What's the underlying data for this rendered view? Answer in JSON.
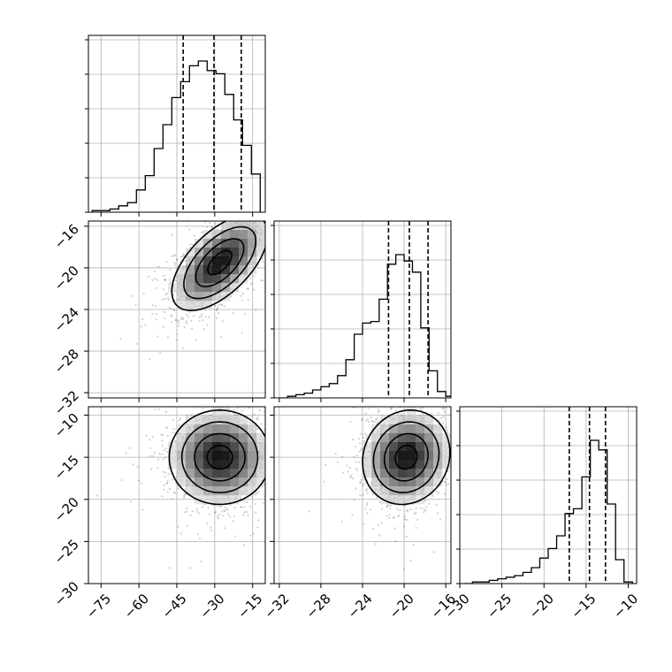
{
  "chart_data": {
    "type": "corner",
    "title": "",
    "parameters": [
      {
        "name": "",
        "range": [
          -80,
          -10
        ],
        "ticks": [
          -75,
          -60,
          -45,
          -30,
          -15
        ],
        "tick_labels": [
          "−75",
          "−60",
          "−45",
          "−30",
          "−15"
        ],
        "quantiles": [
          -42.5,
          -30.3,
          -19.5
        ]
      },
      {
        "name": "",
        "range": [
          -32.5,
          -15.5
        ],
        "ticks": [
          -32,
          -28,
          -24,
          -20,
          -16
        ],
        "tick_labels": [
          "−32",
          "−28",
          "−24",
          "−20",
          "−16"
        ],
        "quantiles": [
          -21.5,
          -19.5,
          -17.7
        ]
      },
      {
        "name": "",
        "range": [
          -30,
          -9
        ],
        "ticks": [
          -30,
          -25,
          -20,
          -15,
          -10
        ],
        "tick_labels": [
          "−30",
          "−25",
          "−20",
          "−15",
          "−10"
        ],
        "quantiles": [
          -17.0,
          -14.6,
          -12.7
        ]
      }
    ],
    "histograms": [
      {
        "bin_edges": [
          -78.5,
          -75,
          -71.5,
          -68,
          -64.5,
          -61,
          -57.5,
          -54,
          -50.5,
          -47,
          -43.5,
          -40,
          -36.5,
          -33,
          -29.5,
          -26,
          -22.5,
          -19,
          -15.5,
          -12
        ],
        "counts": [
          0.01,
          0.01,
          0.02,
          0.04,
          0.06,
          0.14,
          0.23,
          0.4,
          0.55,
          0.72,
          0.82,
          0.92,
          0.95,
          0.89,
          0.87,
          0.74,
          0.58,
          0.42,
          0.24
        ]
      },
      {
        "bin_edges": [
          -32,
          -31.2,
          -30.4,
          -29.6,
          -28.8,
          -28,
          -27.2,
          -26.4,
          -25.6,
          -24.8,
          -24,
          -23.2,
          -22.4,
          -21.6,
          -20.8,
          -20,
          -19.2,
          -18.4,
          -17.6,
          -16.8,
          -16,
          -15.2
        ],
        "counts": [
          0.0,
          0.01,
          0.02,
          0.03,
          0.05,
          0.07,
          0.09,
          0.14,
          0.24,
          0.4,
          0.47,
          0.48,
          0.62,
          0.84,
          0.9,
          0.86,
          0.79,
          0.44,
          0.17,
          0.04,
          0.01
        ]
      },
      {
        "bin_edges": [
          -29.5,
          -28.5,
          -27.5,
          -26.5,
          -25.5,
          -24.5,
          -23.5,
          -22.5,
          -21.5,
          -20.5,
          -19.5,
          -18.5,
          -17.5,
          -16.5,
          -15.5,
          -14.5,
          -13.5,
          -12.5,
          -11.5,
          -10.5,
          -9.5
        ],
        "counts": [
          0.0,
          0.01,
          0.01,
          0.02,
          0.03,
          0.04,
          0.05,
          0.07,
          0.1,
          0.16,
          0.22,
          0.3,
          0.44,
          0.47,
          0.67,
          0.9,
          0.84,
          0.5,
          0.15,
          0.01
        ]
      }
    ],
    "pairs": [
      {
        "x_param": 0,
        "y_param": 1,
        "mean": [
          -28,
          -19.5
        ],
        "sd": [
          9.5,
          2.3
        ],
        "rho": 0.6,
        "peak_cells": [
          [
            -30,
            -20,
            1.0
          ],
          [
            -26,
            -19,
            0.9
          ],
          [
            -33,
            -20.5,
            0.6
          ],
          [
            -22,
            -18.5,
            0.55
          ]
        ]
      },
      {
        "x_param": 0,
        "y_param": 2,
        "mean": [
          -28,
          -15
        ],
        "sd": [
          10,
          2.8
        ],
        "rho": 0.0,
        "peak_cells": [
          [
            -30,
            -14,
            1.0
          ],
          [
            -26,
            -14,
            0.8
          ],
          [
            -35,
            -14.5,
            0.55
          ],
          [
            -22,
            -15,
            0.5
          ]
        ]
      },
      {
        "x_param": 1,
        "y_param": 2,
        "mean": [
          -19.8,
          -15
        ],
        "sd": [
          2.1,
          2.8
        ],
        "rho": 0.1,
        "peak_cells": [
          [
            -19.5,
            -14,
            1.0
          ],
          [
            -20.5,
            -15,
            0.7
          ],
          [
            -18.5,
            -13,
            0.6
          ]
        ]
      }
    ],
    "contour_levels_sigma": [
      0.5,
      1.0,
      1.5,
      2.0
    ],
    "scatter_color": "#555555",
    "line_color": "#000000",
    "grid": true
  }
}
